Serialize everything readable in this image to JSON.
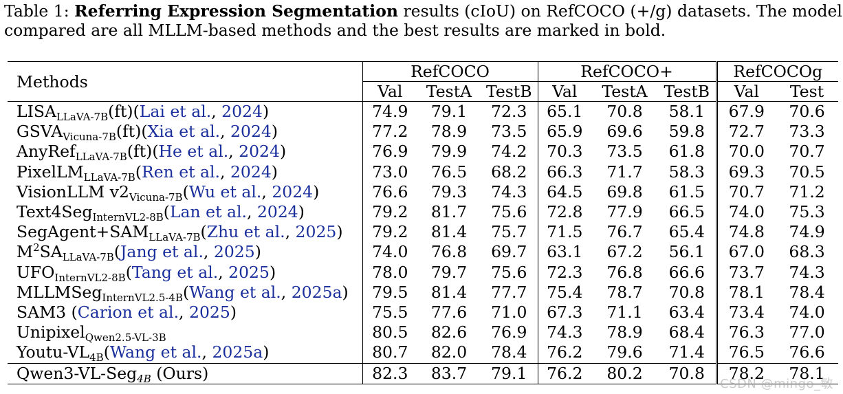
{
  "caption": {
    "label": "Table 1: ",
    "bold_title": "Referring Expression Segmentation",
    "line1_rest": " results (cIoU) on RefCOCO (+/g) datasets. The models we",
    "line2": "compared are all MLLM-based methods and the best results are marked in bold."
  },
  "header": {
    "methods": "Methods",
    "groups": [
      "RefCOCO",
      "RefCOCO+",
      "RefCOCOg"
    ],
    "columns": [
      "Val",
      "TestA",
      "TestB",
      "Val",
      "TestA",
      "TestB",
      "Val",
      "Test"
    ]
  },
  "rows": [
    {
      "name": "LISA",
      "sup": "",
      "sub": "LLaVA-7B",
      "suffix": "(ft)(",
      "cite_author": "Lai et al.",
      "sep": ", ",
      "cite_year": "2024",
      "close": ")",
      "values": [
        "74.9",
        "79.1",
        "72.3",
        "65.1",
        "70.8",
        "58.1",
        "67.9",
        "70.6"
      ]
    },
    {
      "name": "GSVA",
      "sup": "",
      "sub": "Vicuna-7B",
      "suffix": "(ft)(",
      "cite_author": "Xia et al.",
      "sep": ", ",
      "cite_year": "2024",
      "close": ")",
      "values": [
        "77.2",
        "78.9",
        "73.5",
        "65.9",
        "69.6",
        "59.8",
        "72.7",
        "73.3"
      ]
    },
    {
      "name": "AnyRef",
      "sup": "",
      "sub": "LLaVA-7B",
      "suffix": "(ft)(",
      "cite_author": "He et al.",
      "sep": ", ",
      "cite_year": "2024",
      "close": ")",
      "values": [
        "76.9",
        "79.9",
        "74.2",
        "70.3",
        "73.5",
        "61.8",
        "70.0",
        "70.7"
      ]
    },
    {
      "name": "PixelLM",
      "sup": "",
      "sub": "LLaVA-7B",
      "suffix": "(",
      "cite_author": "Ren et al.",
      "sep": ", ",
      "cite_year": "2024",
      "close": ")",
      "values": [
        "73.0",
        "76.5",
        "68.2",
        "66.3",
        "71.7",
        "58.3",
        "69.3",
        "70.5"
      ]
    },
    {
      "name": "VisionLLM v2",
      "sup": "",
      "sub": "Vicuna-7B",
      "suffix": "(",
      "cite_author": "Wu et al.",
      "sep": ", ",
      "cite_year": "2024",
      "close": ")",
      "values": [
        "76.6",
        "79.3",
        "74.3",
        "64.5",
        "69.8",
        "61.5",
        "70.7",
        "71.2"
      ]
    },
    {
      "name": "Text4Seg",
      "sup": "",
      "sub": "InternVL2-8B",
      "suffix": "(",
      "cite_author": "Lan et al.",
      "sep": ", ",
      "cite_year": "2024",
      "close": ")",
      "values": [
        "79.2",
        "81.7",
        "75.6",
        "72.8",
        "77.9",
        "66.5",
        "74.0",
        "75.3"
      ]
    },
    {
      "name": "SegAgent+SAM",
      "sup": "",
      "sub": "LLaVA-7B",
      "suffix": "(",
      "cite_author": "Zhu et al.",
      "sep": ", ",
      "cite_year": "2025",
      "close": ")",
      "values": [
        "79.2",
        "81.4",
        "75.7",
        "71.5",
        "76.7",
        "65.4",
        "74.8",
        "74.9"
      ]
    },
    {
      "name": "M",
      "sup": "2",
      "name2": "SA",
      "sub": "LLaVA-7B",
      "suffix": "(",
      "cite_author": "Jang et al.",
      "sep": ", ",
      "cite_year": "2025",
      "close": ")",
      "values": [
        "74.0",
        "76.8",
        "69.7",
        "63.1",
        "67.2",
        "56.1",
        "67.0",
        "68.3"
      ]
    },
    {
      "name": "UFO",
      "sup": "",
      "sub": "InternVL2-8B",
      "suffix": "(",
      "cite_author": "Tang et al.",
      "sep": ", ",
      "cite_year": "2025",
      "close": ")",
      "values": [
        "78.0",
        "79.7",
        "75.6",
        "72.3",
        "76.8",
        "66.6",
        "73.7",
        "74.3"
      ]
    },
    {
      "name": "MLLMSeg",
      "sup": "",
      "sub": "InternVL2.5-4B",
      "suffix": "(",
      "cite_author": "Wang et al.",
      "sep": ", ",
      "cite_year": "2025a",
      "close": ")",
      "values": [
        "79.5",
        "81.4",
        "77.7",
        "75.4",
        "78.7",
        "70.8",
        "78.1",
        "78.4"
      ],
      "bold_idx": [
        7
      ]
    },
    {
      "name": "SAM3",
      "sup": "",
      "sub": "",
      "suffix": " (",
      "cite_author": "Carion et al.",
      "sep": ", ",
      "cite_year": "2025",
      "close": ")",
      "values": [
        "75.5",
        "77.6",
        "71.0",
        "67.3",
        "71.1",
        "63.4",
        "73.4",
        "74.0"
      ]
    },
    {
      "name": "Unipixel",
      "sup": "",
      "sub": "Qwen2.5-VL-3B",
      "suffix": "",
      "cite_author": "",
      "sep": "",
      "cite_year": "",
      "close": "",
      "values": [
        "80.5",
        "82.6",
        "76.9",
        "74.3",
        "78.9",
        "68.4",
        "76.3",
        "77.0"
      ]
    },
    {
      "name": "Youtu-VL",
      "sup": "",
      "sub": "4B",
      "suffix": "(",
      "cite_author": "Wang et al.",
      "sep": ", ",
      "cite_year": "2025a",
      "close": ")",
      "values": [
        "80.7",
        "82.0",
        "78.4",
        "76.2",
        "79.6",
        "71.4",
        "76.5",
        "76.6"
      ],
      "bold_idx": [
        5
      ]
    }
  ],
  "ours": {
    "name": "Qwen3-VL-Seg",
    "sub": "4B",
    "suffix": " (Ours)",
    "values": [
      "82.3",
      "83.7",
      "79.1",
      "76.2",
      "80.2",
      "70.8",
      "78.2",
      "78.1"
    ],
    "bold_idx": [
      0,
      1,
      2,
      3,
      4,
      6
    ]
  },
  "watermark": "CSDN @mingo_敏",
  "colors": {
    "citation": "#1a2f9c",
    "text": "#000000"
  }
}
